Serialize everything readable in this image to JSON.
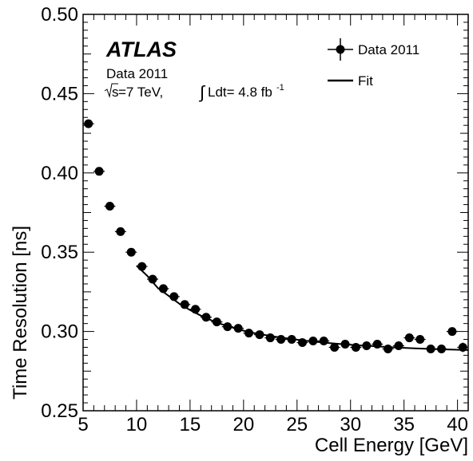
{
  "chart_data": {
    "type": "scatter",
    "xlabel": "Cell Energy [GeV]",
    "ylabel": "Time Resolution [ns]",
    "xlim": [
      5,
      41
    ],
    "ylim": [
      0.25,
      0.5
    ],
    "x_ticks": [
      5,
      10,
      15,
      20,
      25,
      30,
      35,
      40
    ],
    "x_tick_labels": [
      "5",
      "10",
      "15",
      "20",
      "25",
      "30",
      "35",
      "40"
    ],
    "y_ticks": [
      0.25,
      0.3,
      0.35,
      0.4,
      0.45,
      0.5
    ],
    "y_tick_labels": [
      "0.25",
      "0.30",
      "0.35",
      "0.40",
      "0.45",
      "0.50"
    ],
    "grid": false,
    "legend_position": "top-right",
    "annotation": {
      "experiment": "ATLAS",
      "dataset": "Data 2011",
      "sqrt_s": "s",
      "conditions_text": "=7 TeV, ",
      "integral": "∫",
      "lumi_text": "Ldt= 4.8 fb",
      "lumi_exponent": "-1"
    },
    "series": [
      {
        "name": "Data 2011",
        "style": "markers",
        "x": [
          5.5,
          6.5,
          7.5,
          8.5,
          9.5,
          10.5,
          11.5,
          12.5,
          13.5,
          14.5,
          15.5,
          16.5,
          17.5,
          18.5,
          19.5,
          20.5,
          21.5,
          22.5,
          23.5,
          24.5,
          25.5,
          26.5,
          27.5,
          28.5,
          29.5,
          30.5,
          31.5,
          32.5,
          33.5,
          34.5,
          35.5,
          36.5,
          37.5,
          38.5,
          39.5,
          40.5
        ],
        "y": [
          0.431,
          0.401,
          0.379,
          0.363,
          0.35,
          0.341,
          0.333,
          0.327,
          0.322,
          0.317,
          0.314,
          0.309,
          0.306,
          0.303,
          0.302,
          0.299,
          0.298,
          0.296,
          0.295,
          0.295,
          0.293,
          0.294,
          0.294,
          0.29,
          0.292,
          0.29,
          0.291,
          0.292,
          0.289,
          0.291,
          0.296,
          0.295,
          0.289,
          0.289,
          0.3,
          0.29
        ],
        "yerr": [
          0.0015,
          0.0015,
          0.0015,
          0.0015,
          0.0015,
          0.0015,
          0.0015,
          0.0015,
          0.0015,
          0.0015,
          0.0015,
          0.0015,
          0.0015,
          0.0015,
          0.0015,
          0.0015,
          0.0015,
          0.0015,
          0.0015,
          0.0015,
          0.0015,
          0.0015,
          0.0015,
          0.0015,
          0.0015,
          0.0015,
          0.0015,
          0.0015,
          0.0015,
          0.0015,
          0.0015,
          0.0015,
          0.0015,
          0.0015,
          0.0025,
          0.003
        ],
        "color": "#000000"
      },
      {
        "name": "Fit",
        "style": "line",
        "x": [
          10,
          11,
          12,
          13,
          14,
          15,
          16,
          17,
          18,
          19,
          20,
          21,
          22,
          23,
          24,
          25,
          26,
          27,
          28,
          29,
          30,
          31,
          32,
          33,
          34,
          35,
          36,
          37,
          38,
          39,
          40,
          41
        ],
        "y": [
          0.3415,
          0.3351,
          0.3273,
          0.3225,
          0.3175,
          0.3135,
          0.31,
          0.307,
          0.3045,
          0.3025,
          0.3005,
          0.299,
          0.2978,
          0.2967,
          0.2957,
          0.2948,
          0.294,
          0.2933,
          0.2927,
          0.2921,
          0.2916,
          0.2912,
          0.2908,
          0.2904,
          0.29,
          0.2897,
          0.2894,
          0.2891,
          0.2889,
          0.2887,
          0.2885,
          0.2883
        ],
        "color": "#000000"
      }
    ]
  }
}
